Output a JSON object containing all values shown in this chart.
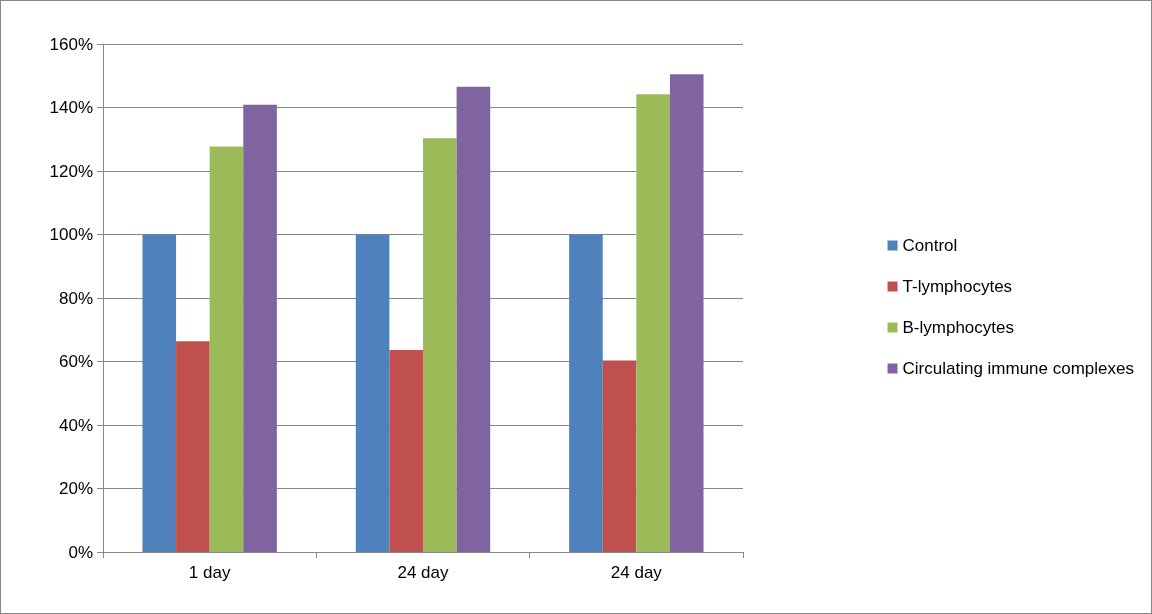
{
  "chart_data": {
    "type": "bar",
    "categories": [
      "1 day",
      "24 day",
      "24 day"
    ],
    "series": [
      {
        "name": "Control",
        "color": "#4f81bd",
        "values": [
          100,
          100,
          100
        ]
      },
      {
        "name": "T-lymphocytes",
        "color": "#c0504d",
        "values": [
          66.4,
          63.6,
          60.3
        ]
      },
      {
        "name": "B-lymphocytes",
        "color": "#9bbb59",
        "values": [
          127.7,
          130.3,
          144.2
        ]
      },
      {
        "name": "Circulating immune complexes",
        "color": "#8064a2",
        "values": [
          140.9,
          146.5,
          150.5
        ]
      }
    ],
    "ylim": [
      0,
      160
    ],
    "yticks": [
      {
        "value": 0,
        "label": "0%"
      },
      {
        "value": 20,
        "label": "20%"
      },
      {
        "value": 40,
        "label": "40%"
      },
      {
        "value": 60,
        "label": "60%"
      },
      {
        "value": 80,
        "label": "80%"
      },
      {
        "value": 100,
        "label": "100%"
      },
      {
        "value": 120,
        "label": "120%"
      },
      {
        "value": 140,
        "label": "140%"
      },
      {
        "value": 160,
        "label": "160%"
      }
    ],
    "grid": "y",
    "legend": "right"
  }
}
